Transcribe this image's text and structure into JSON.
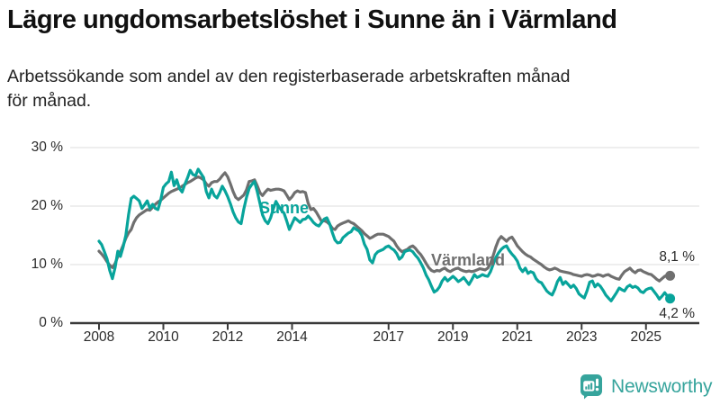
{
  "header": {
    "title": "Lägre ungdomsarbetslöshet i Sunne än i Värmland",
    "subtitle": "Arbetssökande som andel av den registerbaserade arbetskraften månad\nför månad."
  },
  "annotations": {
    "sunne_label": "Sunne",
    "varmland_label": "Värmland",
    "varmland_end_value": "8,1 %",
    "sunne_end_value": "4,2 %"
  },
  "logo": {
    "text": "Newsworthy"
  },
  "colors": {
    "sunne": "#08a49b",
    "varmland": "#6f6f6f",
    "grid": "#e3e3e3",
    "axis": "#3a3a3a",
    "logo_teal": "#36a49c",
    "text_dark": "#2b2b2b"
  },
  "chart_data": {
    "type": "line",
    "title": "Lägre ungdomsarbetslöshet i Sunne än i Värmland",
    "subtitle": "Arbetssökande som andel av den registerbaserade arbetskraften månad för månad.",
    "unit": "%",
    "x_start_year": 2008.0,
    "points_per_year": 12,
    "x_end_year": 2025.75,
    "x_ticks": [
      2008,
      2010,
      2012,
      2014,
      2017,
      2019,
      2021,
      2023,
      2025
    ],
    "y_ticks": [
      {
        "value": 30,
        "label": "30 %"
      },
      {
        "value": 20,
        "label": "20 %"
      },
      {
        "value": 10,
        "label": "10 %"
      },
      {
        "value": 0,
        "label": "0 %"
      }
    ],
    "ylim": [
      0,
      30
    ],
    "grid": true,
    "legend_position": "inline-labels",
    "series": [
      {
        "name": "Värmland",
        "color": "#6f6f6f",
        "end_label": "8,1 %",
        "end_value": 8.1,
        "values": [
          12.3,
          11.8,
          11.2,
          10.5,
          9.9,
          9.5,
          10.2,
          11.4,
          12.2,
          13.3,
          14.5,
          15.4,
          16.0,
          17.2,
          18.0,
          18.5,
          18.8,
          19.1,
          19.4,
          19.3,
          19.8,
          20.3,
          20.7,
          21.0,
          21.4,
          21.8,
          22.2,
          22.5,
          22.7,
          22.9,
          23.1,
          23.4,
          23.7,
          24.0,
          24.2,
          24.5,
          24.8,
          25.0,
          24.8,
          24.5,
          23.8,
          23.4,
          24.0,
          24.2,
          24.2,
          24.6,
          25.2,
          25.7,
          25.0,
          23.8,
          22.5,
          21.5,
          21.1,
          21.5,
          21.9,
          22.8,
          24.2,
          24.3,
          24.5,
          23.5,
          22.3,
          21.8,
          22.4,
          22.9,
          22.7,
          22.8,
          22.9,
          22.9,
          22.8,
          22.6,
          21.9,
          21.1,
          21.6,
          22.3,
          22.6,
          22.4,
          22.5,
          22.3,
          20.5,
          19.4,
          19.6,
          19.0,
          18.2,
          17.4,
          17.5,
          17.3,
          16.9,
          16.2,
          16.0,
          16.6,
          16.9,
          17.1,
          17.3,
          17.5,
          17.2,
          17.0,
          16.6,
          16.2,
          15.8,
          15.3,
          14.9,
          14.5,
          14.7,
          15.0,
          15.2,
          15.2,
          15.2,
          15.0,
          14.8,
          14.4,
          14.0,
          13.2,
          12.6,
          12.2,
          12.4,
          12.6,
          13.0,
          13.2,
          12.8,
          12.2,
          11.7,
          11.0,
          10.2,
          9.5,
          9.0,
          8.8,
          9.0,
          8.9,
          9.2,
          9.4,
          9.0,
          8.8,
          9.1,
          9.3,
          9.4,
          9.1,
          8.9,
          8.8,
          8.9,
          8.8,
          8.9,
          9.1,
          9.3,
          9.2,
          9.1,
          9.4,
          10.2,
          11.5,
          13.0,
          14.2,
          14.8,
          14.4,
          14.0,
          14.5,
          14.7,
          14.0,
          13.2,
          12.7,
          12.2,
          11.8,
          11.5,
          11.3,
          10.9,
          10.6,
          10.3,
          10.0,
          9.6,
          9.3,
          9.1,
          9.2,
          9.4,
          9.2,
          8.9,
          8.8,
          8.7,
          8.6,
          8.5,
          8.3,
          8.2,
          8.1,
          8.0,
          8.2,
          8.3,
          8.2,
          8.0,
          8.1,
          8.3,
          8.2,
          8.0,
          8.2,
          8.3,
          8.0,
          7.8,
          7.6,
          7.5,
          8.2,
          8.8,
          9.1,
          9.4,
          8.9,
          8.6,
          9.0,
          9.1,
          8.8,
          8.6,
          8.4,
          8.3,
          7.9,
          7.5,
          7.2,
          7.6,
          8.0,
          8.2,
          8.1
        ]
      },
      {
        "name": "Sunne",
        "color": "#08a49b",
        "end_label": "4,2 %",
        "end_value": 4.2,
        "values": [
          14.0,
          13.4,
          12.2,
          11.0,
          9.0,
          7.6,
          9.5,
          12.3,
          11.4,
          13.0,
          15.0,
          18.5,
          21.3,
          21.7,
          21.3,
          20.9,
          19.6,
          20.2,
          20.9,
          19.6,
          20.3,
          19.6,
          19.4,
          21.0,
          23.2,
          23.8,
          24.2,
          25.8,
          23.5,
          24.5,
          23.0,
          22.4,
          23.7,
          24.8,
          26.1,
          25.4,
          25.2,
          26.3,
          25.6,
          24.9,
          22.5,
          21.4,
          22.9,
          21.8,
          21.4,
          22.3,
          23.4,
          22.6,
          21.6,
          20.4,
          19.0,
          18.0,
          17.3,
          17.0,
          19.5,
          21.5,
          23.0,
          23.7,
          24.2,
          22.5,
          20.5,
          18.5,
          17.5,
          17.0,
          18.0,
          19.5,
          20.8,
          20.0,
          19.3,
          18.8,
          17.5,
          16.0,
          17.0,
          18.0,
          17.6,
          17.2,
          17.7,
          17.8,
          18.3,
          17.8,
          17.2,
          16.8,
          16.6,
          17.2,
          17.8,
          18.0,
          17.0,
          15.5,
          14.2,
          13.7,
          13.8,
          14.6,
          15.0,
          15.4,
          15.6,
          16.3,
          16.0,
          15.7,
          15.0,
          13.5,
          12.6,
          10.8,
          10.3,
          11.7,
          12.2,
          12.4,
          12.6,
          13.0,
          13.2,
          12.8,
          12.5,
          11.9,
          10.9,
          11.3,
          12.2,
          12.4,
          12.5,
          12.2,
          11.6,
          11.1,
          10.3,
          9.4,
          8.2,
          7.4,
          6.3,
          5.3,
          5.6,
          6.2,
          7.2,
          7.8,
          7.2,
          7.6,
          8.0,
          7.6,
          7.1,
          7.4,
          7.8,
          7.2,
          6.6,
          7.4,
          8.3,
          7.8,
          8.0,
          8.3,
          8.1,
          8.0,
          8.8,
          10.0,
          11.2,
          12.0,
          12.6,
          13.0,
          13.2,
          12.4,
          11.8,
          11.3,
          10.6,
          9.4,
          8.8,
          9.4,
          8.5,
          8.8,
          8.6,
          7.6,
          7.1,
          6.9,
          6.2,
          5.5,
          5.1,
          4.8,
          5.8,
          7.1,
          7.8,
          6.6,
          7.1,
          6.6,
          6.1,
          6.5,
          5.9,
          5.0,
          4.6,
          4.3,
          5.5,
          7.0,
          7.2,
          6.2,
          6.7,
          6.3,
          5.6,
          4.8,
          4.3,
          3.8,
          4.5,
          5.2,
          6.0,
          5.7,
          5.5,
          6.2,
          6.5,
          6.1,
          6.3,
          6.0,
          5.4,
          5.2,
          5.7,
          5.9,
          6.0,
          5.4,
          4.8,
          4.1,
          4.6,
          5.2,
          4.6,
          4.2
        ]
      }
    ]
  }
}
